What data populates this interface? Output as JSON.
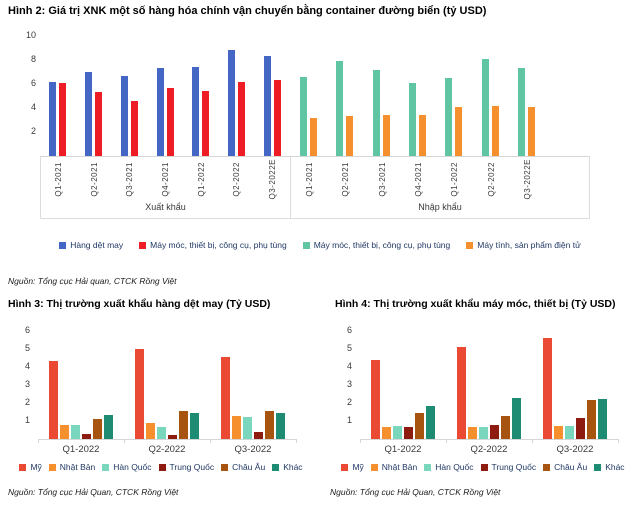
{
  "chart_data": [
    {
      "id": "figure2",
      "type": "bar",
      "title": "Hình 2: Giá trị XNK một số hàng hóa chính vận chuyển bằng container đường biển (tỷ USD)",
      "source": "Nguồn: Tổng cục Hải quan, CTCK Rồng Việt",
      "ylim": [
        0,
        10
      ],
      "yticks": [
        2,
        4,
        6,
        8,
        10
      ],
      "grid": false,
      "legend_position": "bottom",
      "panels": [
        {
          "label": "Xuất khẩu",
          "categories": [
            "Q1-2021",
            "Q2-2021",
            "Q3-2021",
            "Q4-2021",
            "Q1-2022",
            "Q2-2022",
            "Q3-2022E"
          ],
          "series": [
            {
              "name": "Hàng dệt may",
              "color": "#4466C4",
              "values": [
                6.2,
                7.0,
                6.7,
                7.3,
                7.4,
                8.8,
                8.3
              ]
            },
            {
              "name": "Máy móc, thiết bị, công cụ, phụ tùng",
              "color": "#EE1C24",
              "values": [
                6.1,
                5.3,
                4.6,
                5.7,
                5.4,
                6.2,
                6.3
              ]
            }
          ]
        },
        {
          "label": "Nhập khẩu",
          "categories": [
            "Q1-2021",
            "Q2-2021",
            "Q3-2021",
            "Q4-2021",
            "Q1-2022",
            "Q2-2022",
            "Q3-2022E"
          ],
          "series": [
            {
              "name": "Máy móc, thiết bị, công cụ, phụ tùng",
              "color": "#60C5A3",
              "values": [
                6.6,
                7.9,
                7.2,
                6.1,
                6.5,
                8.1,
                7.3
              ]
            },
            {
              "name": "Máy tính, sản phẩm điện tử",
              "color": "#F6902F",
              "values": [
                3.2,
                3.3,
                3.4,
                3.4,
                4.1,
                4.2,
                4.1
              ]
            }
          ]
        }
      ]
    },
    {
      "id": "figure3",
      "type": "bar",
      "title": "Hình 3: Thị trường xuất khẩu hàng dệt may (Tỷ USD)",
      "source": "Nguồn: Tổng cục Hải Quan, CTCK Rồng Việt",
      "ylim": [
        0,
        6
      ],
      "yticks": [
        1,
        2,
        3,
        4,
        5,
        6
      ],
      "grid": false,
      "legend_position": "bottom",
      "categories": [
        "Q1-2022",
        "Q2-2022",
        "Q3-2022"
      ],
      "series": [
        {
          "name": "Mỹ",
          "color": "#EA4A33",
          "values": [
            4.35,
            5.0,
            4.55
          ]
        },
        {
          "name": "Nhật Bản",
          "color": "#F6902F",
          "values": [
            0.8,
            0.9,
            1.3
          ]
        },
        {
          "name": "Hàn Quốc",
          "color": "#7BD6BE",
          "values": [
            0.8,
            0.65,
            1.2
          ]
        },
        {
          "name": "Trung Quốc",
          "color": "#8E1B10",
          "values": [
            0.3,
            0.25,
            0.4
          ]
        },
        {
          "name": "Châu Âu",
          "color": "#A75411",
          "values": [
            1.1,
            1.55,
            1.55
          ]
        },
        {
          "name": "Khác",
          "color": "#1E8C72",
          "values": [
            1.35,
            1.45,
            1.45
          ]
        }
      ]
    },
    {
      "id": "figure4",
      "type": "bar",
      "title": "Hình 4: Thị trường xuất khẩu máy móc, thiết bị (Tỷ USD)",
      "source": "Nguồn: Tổng cục Hải Quan, CTCK Rồng Việt",
      "ylim": [
        0,
        6
      ],
      "yticks": [
        1,
        2,
        3,
        4,
        5,
        6
      ],
      "grid": false,
      "legend_position": "bottom",
      "categories": [
        "Q1-2022",
        "Q2-2022",
        "Q3-2022"
      ],
      "series": [
        {
          "name": "Mỹ",
          "color": "#EA4A33",
          "values": [
            4.4,
            5.1,
            5.6
          ]
        },
        {
          "name": "Nhật Bản",
          "color": "#F6902F",
          "values": [
            0.65,
            0.65,
            0.7
          ]
        },
        {
          "name": "Hàn Quốc",
          "color": "#7BD6BE",
          "values": [
            0.7,
            0.65,
            0.7
          ]
        },
        {
          "name": "Trung Quốc",
          "color": "#8E1B10",
          "values": [
            0.65,
            0.8,
            1.15
          ]
        },
        {
          "name": "Châu Âu",
          "color": "#A75411",
          "values": [
            1.45,
            1.3,
            2.15
          ]
        },
        {
          "name": "Khác",
          "color": "#1E8C72",
          "values": [
            1.85,
            2.3,
            2.25
          ]
        }
      ]
    }
  ]
}
